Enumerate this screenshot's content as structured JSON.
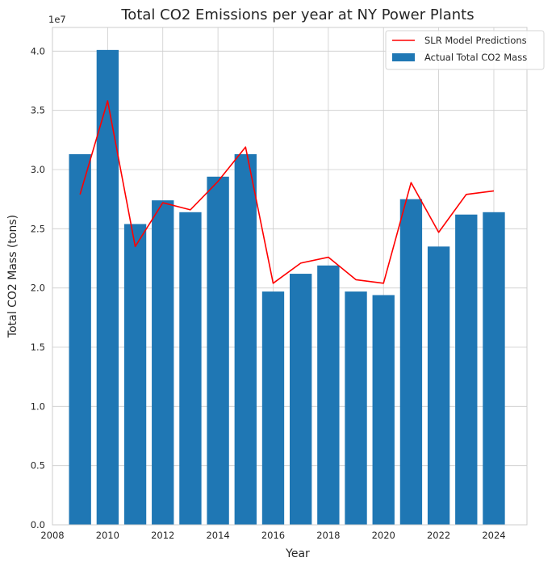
{
  "chart_data": {
    "type": "bar",
    "title": "Total CO2 Emissions per year at NY Power Plants",
    "xlabel": "Year",
    "ylabel": "Total CO2 Mass (tons)",
    "y_offset_label": "1e7",
    "x": [
      2009,
      2010,
      2011,
      2012,
      2013,
      2014,
      2015,
      2016,
      2017,
      2018,
      2019,
      2020,
      2021,
      2022,
      2023,
      2024
    ],
    "xlim": [
      2008,
      2025.2
    ],
    "ylim": [
      0,
      42000000
    ],
    "x_ticks": [
      2008,
      2010,
      2012,
      2014,
      2016,
      2018,
      2020,
      2022,
      2024
    ],
    "x_tick_labels": [
      "2008",
      "2010",
      "2012",
      "2014",
      "2016",
      "2018",
      "2020",
      "2022",
      "2024"
    ],
    "y_ticks": [
      0,
      5000000,
      10000000,
      15000000,
      20000000,
      25000000,
      30000000,
      35000000,
      40000000
    ],
    "y_tick_labels": [
      "0.0",
      "0.5",
      "1.0",
      "1.5",
      "2.0",
      "2.5",
      "3.0",
      "3.5",
      "4.0"
    ],
    "grid": true,
    "legend_position": "top-right",
    "series": [
      {
        "name": "SLR Model Predictions",
        "type": "line",
        "color": "#ff0000",
        "values": [
          27900000,
          35800000,
          23500000,
          27200000,
          26600000,
          29000000,
          31900000,
          20400000,
          22100000,
          22600000,
          20700000,
          20400000,
          28900000,
          24700000,
          27900000,
          28200000
        ]
      },
      {
        "name": "Actual Total CO2 Mass",
        "type": "bar",
        "color": "#1f77b4",
        "values": [
          31300000,
          40100000,
          25400000,
          27400000,
          26400000,
          29400000,
          31300000,
          19700000,
          21200000,
          21900000,
          19700000,
          19400000,
          27500000,
          23500000,
          26200000,
          26400000
        ]
      }
    ]
  }
}
